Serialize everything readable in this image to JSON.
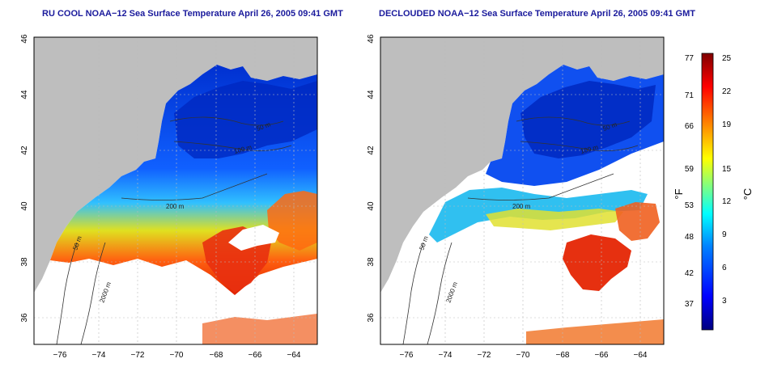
{
  "panels": [
    {
      "title": "RU COOL NOAA−12 Sea Surface Temperature April 26, 2005 09:41 GMT",
      "contour_labels": [
        "50 m",
        "100 m",
        "200 m",
        "50 m",
        "2000 m"
      ]
    },
    {
      "title": "DECLOUDED NOAA−12 Sea Surface Temperature April 26, 2005 09:41 GMT",
      "contour_labels": [
        "50 m",
        "100 m",
        "200 m",
        "50 m",
        "2000 m"
      ]
    }
  ],
  "axes": {
    "lat_ticks": [
      "46",
      "44",
      "42",
      "40",
      "38",
      "36"
    ],
    "lon_ticks": [
      "−76",
      "−74",
      "−72",
      "−70",
      "−68",
      "−66",
      "−64"
    ]
  },
  "colorbar": {
    "fahrenheit_label": "°F",
    "celsius_label": "°C",
    "fahrenheit_ticks": [
      "77",
      "71",
      "66",
      "59",
      "53",
      "48",
      "42",
      "37"
    ],
    "celsius_ticks": [
      "25",
      "22",
      "19",
      "15",
      "12",
      "9",
      "6",
      "3"
    ],
    "colors": [
      "#00007f",
      "#0000ff",
      "#0080ff",
      "#00ffff",
      "#80ff80",
      "#ffff00",
      "#ff8000",
      "#ff0000",
      "#7f0000"
    ]
  },
  "palette": {
    "land": "#bebebe",
    "cloud": "#ffffff",
    "title_color": "#1a1a9c"
  }
}
